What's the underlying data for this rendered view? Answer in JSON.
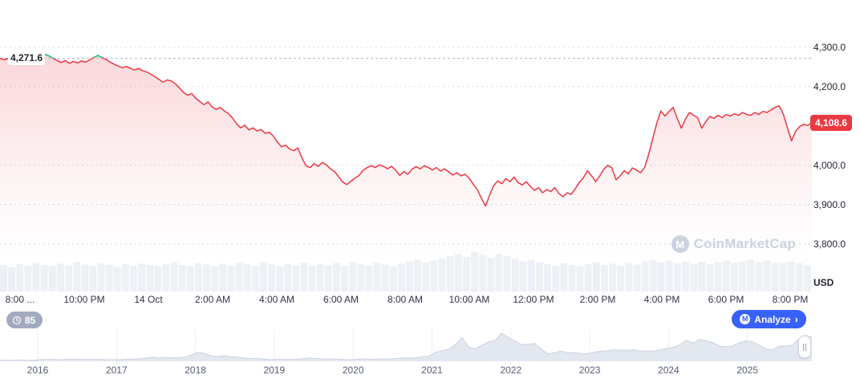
{
  "watermark": {
    "text": "CoinMarketCap"
  },
  "toolbar": {
    "counter_label": "85",
    "analyze_label": "Analyze",
    "analyze_chevron": "›"
  },
  "icons": {
    "cmc_monogram": "M"
  },
  "price_axis": {
    "unit": "USD"
  },
  "colors": {
    "down": "#ea3943",
    "up": "#16c784",
    "grid": "#d5dbe5",
    "open_line": "#a6b0c3",
    "axis_text": "#222531",
    "time_text": "#323546",
    "volume_bar": "#edf0f5",
    "nav_area": "#e3e8f0",
    "nav_line": "#c9d2e0",
    "nav_grid": "#eceff4",
    "analyze_bg": "#3861fb",
    "counter_bg": "#a2aabf",
    "watermark_color": "#ccd3df"
  },
  "chart_data": {
    "type": "line",
    "title": "Intraday price (USD)",
    "open_price": 4271.6,
    "open_price_label": "4,271.6",
    "last_price": 4108.6,
    "last_price_label": "4,108.6",
    "ylim": [
      3675,
      4420
    ],
    "grid": "horizontal-dotted",
    "legend": null,
    "y_ticks": [
      {
        "value": 4300,
        "label": "4,300.0"
      },
      {
        "value": 4200,
        "label": "4,200.0"
      },
      {
        "value": 4000,
        "label": "4,000.0"
      },
      {
        "value": 3900,
        "label": "3,900.0"
      },
      {
        "value": 3800,
        "label": "3,800.0"
      }
    ],
    "x_ticks": [
      "8:00 ...",
      "10:00 PM",
      "14 Oct",
      "2:00 AM",
      "4:00 AM",
      "6:00 AM",
      "8:00 AM",
      "10:00 AM",
      "12:00 PM",
      "2:00 PM",
      "4:00 PM",
      "6:00 PM",
      "8:00 PM"
    ],
    "prices": [
      4272,
      4268,
      4271,
      4265,
      4269,
      4263,
      4268,
      4272,
      4266,
      4270,
      4276,
      4282,
      4278,
      4272,
      4266,
      4261,
      4266,
      4259,
      4264,
      4260,
      4265,
      4262,
      4268,
      4274,
      4279,
      4274,
      4269,
      4262,
      4257,
      4252,
      4248,
      4251,
      4246,
      4242,
      4246,
      4240,
      4237,
      4231,
      4225,
      4218,
      4211,
      4217,
      4214,
      4207,
      4196,
      4185,
      4178,
      4182,
      4170,
      4162,
      4154,
      4161,
      4148,
      4142,
      4147,
      4138,
      4131,
      4120,
      4105,
      4095,
      4102,
      4090,
      4095,
      4087,
      4091,
      4081,
      4084,
      4074,
      4059,
      4047,
      4051,
      4041,
      4037,
      4044,
      4019,
      3999,
      3994,
      4004,
      3997,
      4007,
      4001,
      3991,
      3984,
      3971,
      3957,
      3951,
      3959,
      3967,
      3974,
      3987,
      3994,
      3999,
      3994,
      4001,
      3997,
      3991,
      3997,
      3987,
      3974,
      3984,
      3977,
      3990,
      3996,
      3991,
      3999,
      3994,
      3988,
      3994,
      3985,
      3991,
      3983,
      3975,
      3981,
      3973,
      3977,
      3967,
      3952,
      3938,
      3916,
      3896,
      3924,
      3948,
      3960,
      3953,
      3966,
      3958,
      3970,
      3956,
      3950,
      3958,
      3946,
      3936,
      3943,
      3930,
      3938,
      3933,
      3943,
      3928,
      3920,
      3930,
      3926,
      3940,
      3956,
      3968,
      3986,
      3973,
      3958,
      3973,
      3990,
      4000,
      3993,
      3963,
      3973,
      3986,
      3978,
      3993,
      3988,
      3981,
      3994,
      4028,
      4068,
      4108,
      4138,
      4125,
      4137,
      4147,
      4119,
      4094,
      4117,
      4134,
      4127,
      4121,
      4094,
      4111,
      4124,
      4119,
      4127,
      4121,
      4129,
      4125,
      4131,
      4127,
      4134,
      4129,
      4127,
      4134,
      4129,
      4137,
      4134,
      4141,
      4147,
      4151,
      4130,
      4095,
      4062,
      4086,
      4098,
      4104,
      4101,
      4108.6
    ],
    "volume": [
      0.6,
      0.55,
      0.62,
      0.58,
      0.65,
      0.6,
      0.57,
      0.63,
      0.59,
      0.66,
      0.61,
      0.58,
      0.64,
      0.6,
      0.55,
      0.62,
      0.58,
      0.63,
      0.6,
      0.57,
      0.62,
      0.65,
      0.6,
      0.58,
      0.64,
      0.61,
      0.57,
      0.63,
      0.59,
      0.65,
      0.62,
      0.58,
      0.66,
      0.61,
      0.57,
      0.63,
      0.6,
      0.65,
      0.58,
      0.62,
      0.6,
      0.64,
      0.58,
      0.66,
      0.62,
      0.59,
      0.65,
      0.61,
      0.57,
      0.63,
      0.68,
      0.72,
      0.65,
      0.7,
      0.75,
      0.8,
      0.85,
      0.78,
      0.9,
      0.83,
      0.76,
      0.85,
      0.8,
      0.74,
      0.68,
      0.72,
      0.66,
      0.62,
      0.58,
      0.64,
      0.6,
      0.57,
      0.62,
      0.66,
      0.6,
      0.63,
      0.58,
      0.65,
      0.61,
      0.68,
      0.72,
      0.66,
      0.7,
      0.64,
      0.68,
      0.63,
      0.67,
      0.62,
      0.66,
      0.7,
      0.65,
      0.68,
      0.72,
      0.66,
      0.7,
      0.65,
      0.65,
      0.68,
      0.64,
      0.6
    ],
    "navigator": {
      "years": [
        "2016",
        "2017",
        "2018",
        "2019",
        "2020",
        "2021",
        "2022",
        "2023",
        "2024",
        "2025"
      ],
      "values": [
        0.02,
        0.01,
        0.01,
        0.02,
        0.01,
        0.01,
        0.03,
        0.04,
        0.04,
        0.03,
        0.04,
        0.05,
        0.04,
        0.04,
        0.04,
        0.04,
        0.03,
        0.03,
        0.03,
        0.04,
        0.05,
        0.06,
        0.08,
        0.12,
        0.09,
        0.11,
        0.1,
        0.1,
        0.12,
        0.2,
        0.3,
        0.26,
        0.17,
        0.15,
        0.18,
        0.14,
        0.12,
        0.09,
        0.07,
        0.07,
        0.05,
        0.03,
        0.04,
        0.04,
        0.04,
        0.05,
        0.07,
        0.09,
        0.07,
        0.06,
        0.05,
        0.05,
        0.04,
        0.03,
        0.04,
        0.06,
        0.04,
        0.05,
        0.05,
        0.06,
        0.07,
        0.1,
        0.09,
        0.1,
        0.13,
        0.16,
        0.3,
        0.36,
        0.42,
        0.58,
        0.85,
        0.5,
        0.42,
        0.56,
        0.68,
        0.74,
        1.0,
        0.84,
        0.72,
        0.58,
        0.6,
        0.63,
        0.42,
        0.24,
        0.28,
        0.35,
        0.28,
        0.29,
        0.26,
        0.25,
        0.3,
        0.34,
        0.36,
        0.39,
        0.38,
        0.37,
        0.39,
        0.35,
        0.34,
        0.35,
        0.39,
        0.45,
        0.48,
        0.58,
        0.74,
        0.64,
        0.77,
        0.72,
        0.66,
        0.53,
        0.5,
        0.53,
        0.65,
        0.72,
        0.68,
        0.56,
        0.43,
        0.38,
        0.52,
        0.53,
        0.56,
        0.78,
        0.92,
        0.86
      ]
    }
  }
}
